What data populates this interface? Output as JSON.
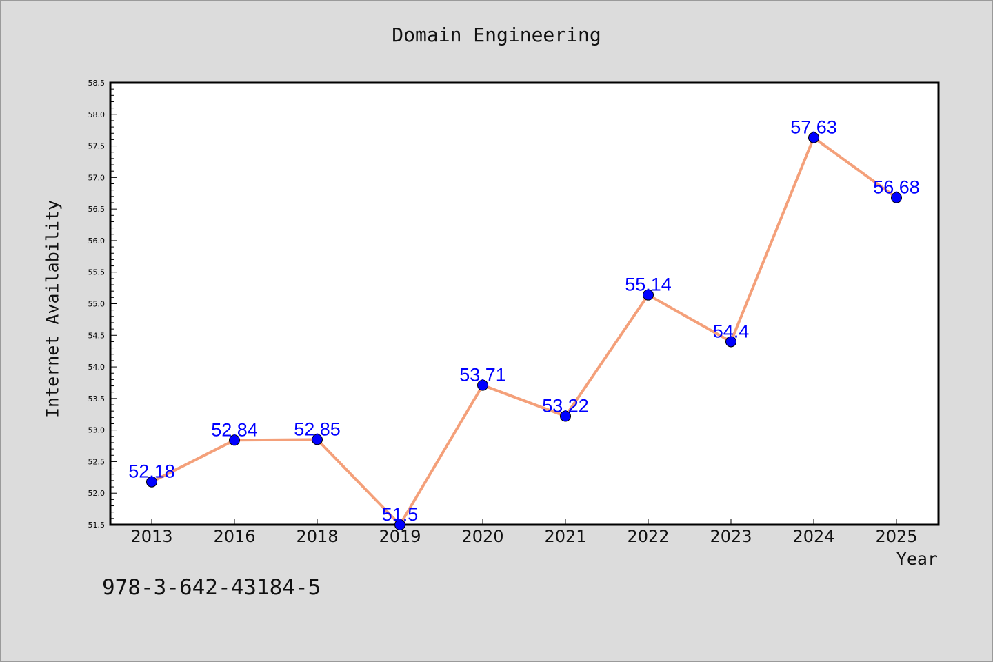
{
  "chart_data": {
    "type": "line",
    "title": "Domain Engineering",
    "xlabel": "Year",
    "ylabel": "Internet Availability",
    "categories": [
      "2013",
      "2016",
      "2018",
      "2019",
      "2020",
      "2021",
      "2022",
      "2023",
      "2024",
      "2025"
    ],
    "series": [
      {
        "values": [
          52.18,
          52.84,
          52.85,
          51.5,
          53.71,
          53.22,
          55.14,
          54.4,
          57.63,
          56.68
        ],
        "labels": [
          "52.18",
          "52.84",
          "52.85",
          "51.5",
          "53.71",
          "53.22",
          "55.14",
          "54.4",
          "57.63",
          "56.68"
        ],
        "line_color": "#f4a07a",
        "marker_color": "#0000ff"
      }
    ],
    "ylim": [
      51.5,
      58.5
    ],
    "yticks": [
      "51.5",
      "52.0",
      "52.5",
      "53.0",
      "53.5",
      "54.0",
      "54.5",
      "55.0",
      "55.5",
      "56.0",
      "56.5",
      "57.0",
      "57.5",
      "58.0",
      "58.5"
    ],
    "grid": false,
    "legend": "none",
    "background": "#dcdcdc",
    "plot_background": "#ffffff"
  },
  "footer": {
    "isbn": "978-3-642-43184-5"
  }
}
